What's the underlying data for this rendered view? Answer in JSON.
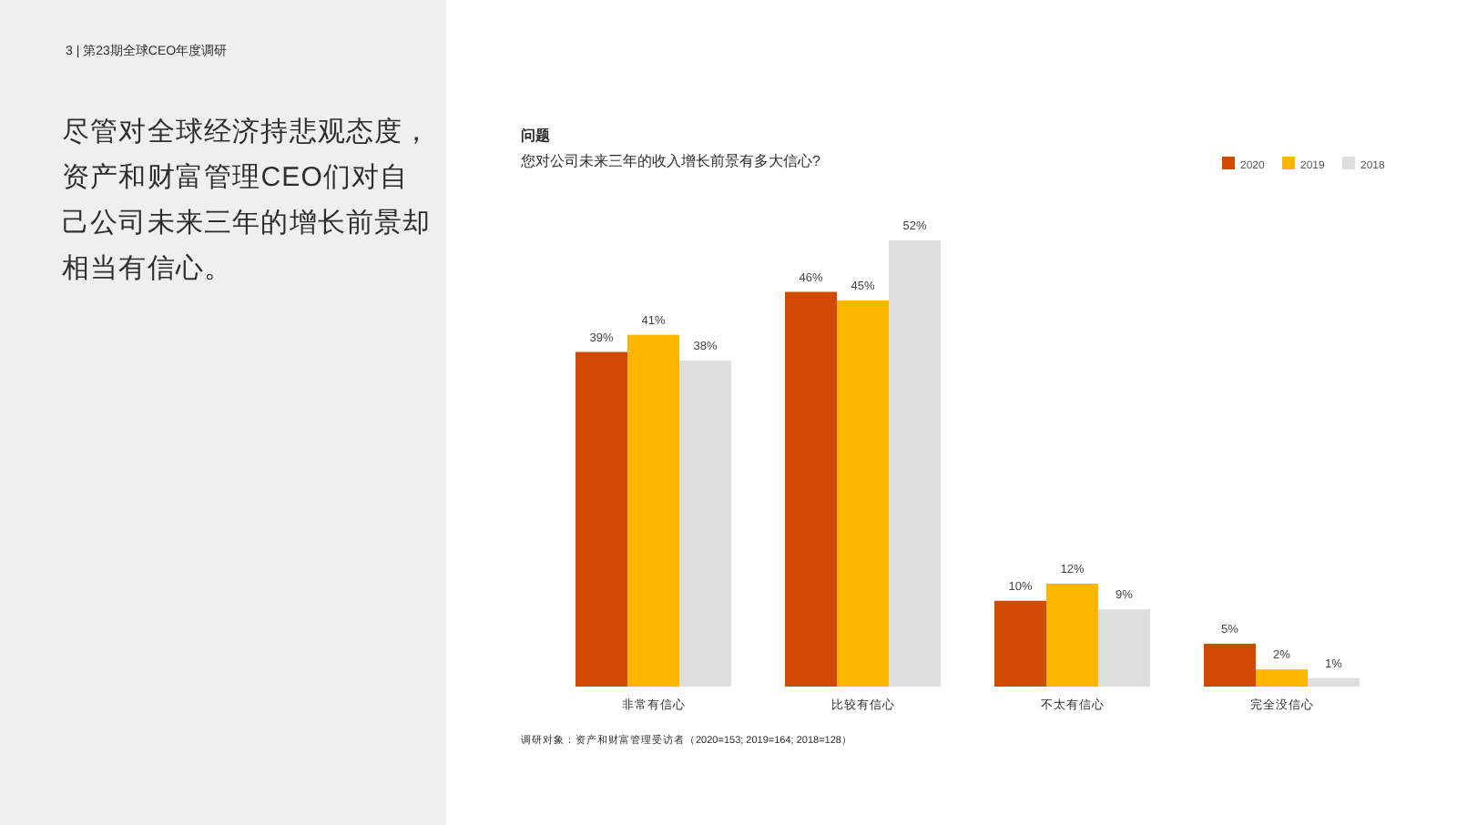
{
  "chart_data": {
    "type": "bar",
    "title": "您对公司未来三年的收入增长前景有多大信心?",
    "categories": [
      "非常有信心",
      "比较有信心",
      "不太有信心",
      "完全没信心"
    ],
    "series": [
      {
        "name": "2020",
        "color": "#d04a02",
        "values": [
          39,
          46,
          10,
          5
        ],
        "value_labels": [
          "39%",
          "46%",
          "10%",
          "5%"
        ]
      },
      {
        "name": "2019",
        "color": "#ffb600",
        "values": [
          41,
          45,
          12,
          2
        ],
        "value_labels": [
          "41%",
          "45%",
          "12%",
          "2%"
        ]
      },
      {
        "name": "2018",
        "color": "#dedede",
        "values": [
          38,
          52,
          9,
          1
        ],
        "value_labels": [
          "38%",
          "52%",
          "9%",
          "1%"
        ]
      }
    ],
    "legend": "top right",
    "annotations": [
      "3 | 第23期全球CEO年度调研",
      "尽管对全球经济持悲观态度，资产和财富管理CEO们对自己公司未来三年的增长前景却相当有信心。",
      "问题",
      "调研对象：资产和财富管理受访者（2020=153; 2019=164; 2018=128）"
    ]
  }
}
